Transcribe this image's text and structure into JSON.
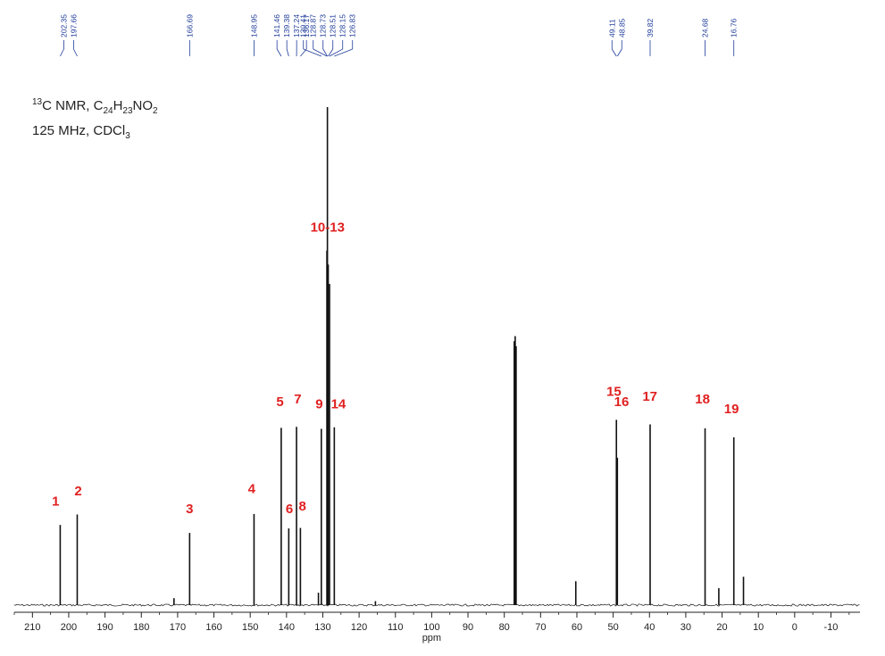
{
  "chart_data": {
    "type": "line",
    "title_block": {
      "line1_sup": "13",
      "line1_prefix": "C NMR, C",
      "sub1": "24",
      "h": "H",
      "sub2": "23",
      "no": "NO",
      "sub3": "2",
      "line2_prefix": "125 MHz, CDCl",
      "sub4": "3"
    },
    "xlabel": "ppm",
    "xlim": [
      215,
      -18
    ],
    "xticks": [
      210,
      200,
      190,
      180,
      170,
      160,
      150,
      140,
      130,
      120,
      110,
      100,
      90,
      80,
      70,
      60,
      50,
      40,
      30,
      20,
      10,
      0,
      -10
    ],
    "xtick_labels": [
      "210",
      "200",
      "190",
      "180",
      "170",
      "160",
      "150",
      "140",
      "130",
      "120",
      "110",
      "100",
      "90",
      "80",
      "70",
      "60",
      "50",
      "40",
      "30",
      "20",
      "10",
      "0",
      "-10"
    ],
    "peaks": [
      {
        "ppm": 202.35,
        "height": 0.161
      },
      {
        "ppm": 197.66,
        "height": 0.182
      },
      {
        "ppm": 166.69,
        "height": 0.145
      },
      {
        "ppm": 148.95,
        "height": 0.183
      },
      {
        "ppm": 141.46,
        "height": 0.356
      },
      {
        "ppm": 139.38,
        "height": 0.154
      },
      {
        "ppm": 137.24,
        "height": 0.358
      },
      {
        "ppm": 136.17,
        "height": 0.155
      },
      {
        "ppm": 130.41,
        "height": 0.354
      },
      {
        "ppm": 128.87,
        "height": 0.712
      },
      {
        "ppm": 128.73,
        "height": 1.0
      },
      {
        "ppm": 128.51,
        "height": 0.684
      },
      {
        "ppm": 128.15,
        "height": 0.645
      },
      {
        "ppm": 126.83,
        "height": 0.357
      },
      {
        "ppm": 77.25,
        "height": 0.53
      },
      {
        "ppm": 77.0,
        "height": 0.54
      },
      {
        "ppm": 76.75,
        "height": 0.52
      },
      {
        "ppm": 60.3,
        "height": 0.048
      },
      {
        "ppm": 49.11,
        "height": 0.372
      },
      {
        "ppm": 48.85,
        "height": 0.296
      },
      {
        "ppm": 39.82,
        "height": 0.363
      },
      {
        "ppm": 24.68,
        "height": 0.355
      },
      {
        "ppm": 20.9,
        "height": 0.034
      },
      {
        "ppm": 16.76,
        "height": 0.337
      },
      {
        "ppm": 14.1,
        "height": 0.057
      },
      {
        "ppm": 171.0,
        "height": 0.014
      },
      {
        "ppm": 115.5,
        "height": 0.008
      },
      {
        "ppm": 131.2,
        "height": 0.025
      }
    ],
    "reference_labels": [
      {
        "ppm": 202.35,
        "label": "202.35"
      },
      {
        "ppm": 197.66,
        "label": "197.66"
      },
      {
        "ppm": 166.69,
        "label": "166.69"
      },
      {
        "ppm": 148.95,
        "label": "148.95"
      },
      {
        "ppm": 141.46,
        "label": "141.46"
      },
      {
        "ppm": 139.38,
        "label": "139.38"
      },
      {
        "ppm": 137.24,
        "label": "137.24"
      },
      {
        "ppm": 136.17,
        "label": "136.17"
      },
      {
        "ppm": 130.41,
        "label": "130.41"
      },
      {
        "ppm": 128.87,
        "label": "128.87"
      },
      {
        "ppm": 128.73,
        "label": "128.73"
      },
      {
        "ppm": 128.51,
        "label": "128.51"
      },
      {
        "ppm": 128.15,
        "label": "128.15"
      },
      {
        "ppm": 126.83,
        "label": "126.83"
      },
      {
        "ppm": 49.11,
        "label": "49.11"
      },
      {
        "ppm": 48.85,
        "label": "48.85"
      },
      {
        "ppm": 39.82,
        "label": "39.82"
      },
      {
        "ppm": 24.68,
        "label": "24.68"
      },
      {
        "ppm": 16.76,
        "label": "16.76"
      }
    ],
    "assignments": [
      {
        "label": "1",
        "ppm": 203.6,
        "height": 0.2
      },
      {
        "label": "2",
        "ppm": 197.4,
        "height": 0.22
      },
      {
        "label": "3",
        "ppm": 166.69,
        "height": 0.185
      },
      {
        "label": "4",
        "ppm": 149.6,
        "height": 0.225
      },
      {
        "label": "5",
        "ppm": 141.8,
        "height": 0.4
      },
      {
        "label": "6",
        "ppm": 139.2,
        "height": 0.185
      },
      {
        "label": "7",
        "ppm": 136.9,
        "height": 0.405
      },
      {
        "label": "8",
        "ppm": 135.6,
        "height": 0.19
      },
      {
        "label": "9",
        "ppm": 131.0,
        "height": 0.395
      },
      {
        "label": "10-13",
        "ppm": 128.7,
        "height": 0.75
      },
      {
        "label": "14",
        "ppm": 125.7,
        "height": 0.395
      },
      {
        "label": "15",
        "ppm": 49.8,
        "height": 0.42
      },
      {
        "label": "16",
        "ppm": 47.7,
        "height": 0.4
      },
      {
        "label": "17",
        "ppm": 39.9,
        "height": 0.41
      },
      {
        "label": "18",
        "ppm": 25.4,
        "height": 0.405
      },
      {
        "label": "19",
        "ppm": 17.4,
        "height": 0.385
      }
    ],
    "colors": {
      "spectrum": "#111111",
      "labels": "#e02020",
      "reference": "#1f3c9a",
      "axis": "#222222"
    }
  }
}
